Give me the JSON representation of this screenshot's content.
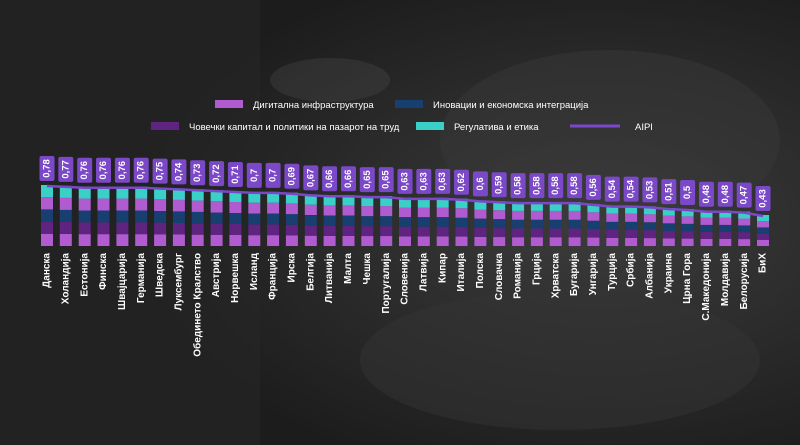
{
  "chart_data": {
    "type": "bar",
    "stacked": true,
    "legend_position": "top",
    "categories": [
      "Данска",
      "Холандија",
      "Естонија",
      "Финска",
      "Швајцарија",
      "Германија",
      "Шведска",
      "Луксембург",
      "Обединето Кралство",
      "Австрија",
      "Норвешка",
      "Исланд",
      "Франција",
      "Ирска",
      "Белгија",
      "Литванија",
      "Малта",
      "Чешка",
      "Португалија",
      "Словенија",
      "Латвија",
      "Кипар",
      "Италија",
      "Полска",
      "Словачка",
      "Романија",
      "Грција",
      "Хрватска",
      "Бугарија",
      "Унгарија",
      "Турција",
      "Србија",
      "Албанија",
      "Украина",
      "Црна Гора",
      "С.Македонија",
      "Молдавија",
      "Белорусија",
      "БиХ"
    ],
    "aipi_labels": [
      "0,78",
      "0,77",
      "0,76",
      "0,76",
      "0,76",
      "0,76",
      "0,75",
      "0,74",
      "0,73",
      "0,72",
      "0,71",
      "0,7",
      "0,7",
      "0,69",
      "0,67",
      "0,66",
      "0,66",
      "0,65",
      "0,65",
      "0,63",
      "0,63",
      "0,63",
      "0,62",
      "0,6",
      "0,59",
      "0,58",
      "0,58",
      "0,58",
      "0,58",
      "0,56",
      "0,54",
      "0,54",
      "0,53",
      "0,51",
      "0,5",
      "0,48",
      "0,48",
      "0,47",
      "0,43"
    ],
    "aipi_values": [
      0.78,
      0.77,
      0.76,
      0.76,
      0.76,
      0.76,
      0.75,
      0.74,
      0.73,
      0.72,
      0.71,
      0.7,
      0.7,
      0.69,
      0.67,
      0.66,
      0.66,
      0.65,
      0.65,
      0.63,
      0.63,
      0.63,
      0.62,
      0.6,
      0.59,
      0.58,
      0.58,
      0.58,
      0.58,
      0.56,
      0.54,
      0.54,
      0.53,
      0.51,
      0.5,
      0.48,
      0.48,
      0.47,
      0.43
    ],
    "series": [
      {
        "name": "Дигитална инфраструктура",
        "color": "#b05cd0"
      },
      {
        "name": "Иновации и економска интеграција",
        "color": "#173f70"
      },
      {
        "name": "Човечки капитал и политики на пазарот на труд",
        "color": "#5e2480"
      },
      {
        "name": "Регулатива и етика",
        "color": "#3ad0c8"
      }
    ],
    "line_series": {
      "name": "AIPI",
      "color": "#7b48c8"
    }
  }
}
